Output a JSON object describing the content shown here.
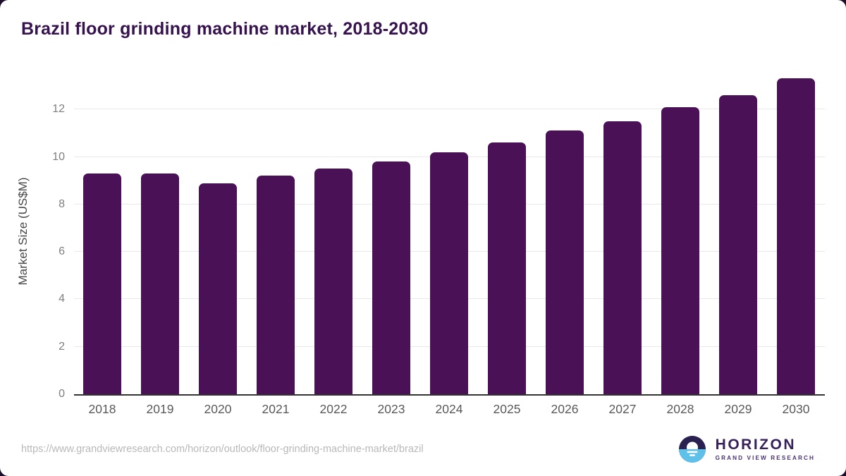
{
  "page": {
    "source_url": "https://www.grandviewresearch.com/horizon/outlook/floor-grinding-machine-market/brazil"
  },
  "logo": {
    "name": "HORIZON",
    "subtitle": "GRAND VIEW RESEARCH"
  },
  "chart_data": {
    "type": "bar",
    "title": "Brazil floor grinding machine market, 2018-2030",
    "categories": [
      "2018",
      "2019",
      "2020",
      "2021",
      "2022",
      "2023",
      "2024",
      "2025",
      "2026",
      "2027",
      "2028",
      "2029",
      "2030"
    ],
    "values": [
      9.3,
      9.3,
      8.9,
      9.2,
      9.5,
      9.8,
      10.2,
      10.6,
      11.1,
      11.5,
      12.1,
      12.6,
      13.3
    ],
    "xlabel": "",
    "ylabel": "Market Size (US$M)",
    "ylim": [
      0,
      13.67
    ],
    "yticks": [
      0,
      2,
      4,
      6,
      8,
      10,
      12
    ],
    "grid": true,
    "legend": false,
    "bar_color": "#4a1157",
    "gridline_color": "#e8e8e8",
    "axis_line_color": "#333333",
    "title_color": "#36124f"
  }
}
